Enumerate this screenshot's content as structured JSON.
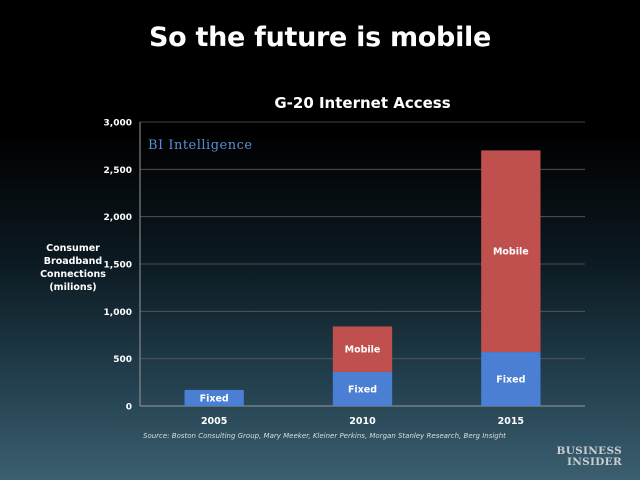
{
  "slide": {
    "title": "So the future is mobile"
  },
  "brand": {
    "line1": "BUSINESS",
    "line2": "INSIDER"
  },
  "logo": {
    "text": "BI Intelligence"
  },
  "chart_data": {
    "type": "bar",
    "stacked": true,
    "title": "G-20 Internet Access",
    "ylabel_lines": [
      "Consumer",
      "Broadband",
      "Connections",
      "(milions)"
    ],
    "xlabel": "",
    "categories": [
      "2005",
      "2010",
      "2015"
    ],
    "series": [
      {
        "name": "Fixed",
        "values": [
          170,
          360,
          570
        ],
        "color": "#4a7fd4",
        "labels": [
          "Fixed",
          "Fixed",
          "Fixed"
        ]
      },
      {
        "name": "Mobile",
        "values": [
          0,
          480,
          2130
        ],
        "color": "#c0504d",
        "labels": [
          "",
          "Mobile",
          "Mobile"
        ]
      }
    ],
    "ylim": [
      0,
      3000
    ],
    "yticks": [
      0,
      500,
      1000,
      1500,
      2000,
      2500,
      3000
    ],
    "ytick_labels": [
      "0",
      "500",
      "1,000",
      "1,500",
      "2,000",
      "2,500",
      "3,000"
    ],
    "grid": true,
    "legend": "none",
    "source": "Source: Boston Consulting Group, Mary Meeker, Kleiner Perkins, Morgan Stanley Research, Berg Insight"
  }
}
